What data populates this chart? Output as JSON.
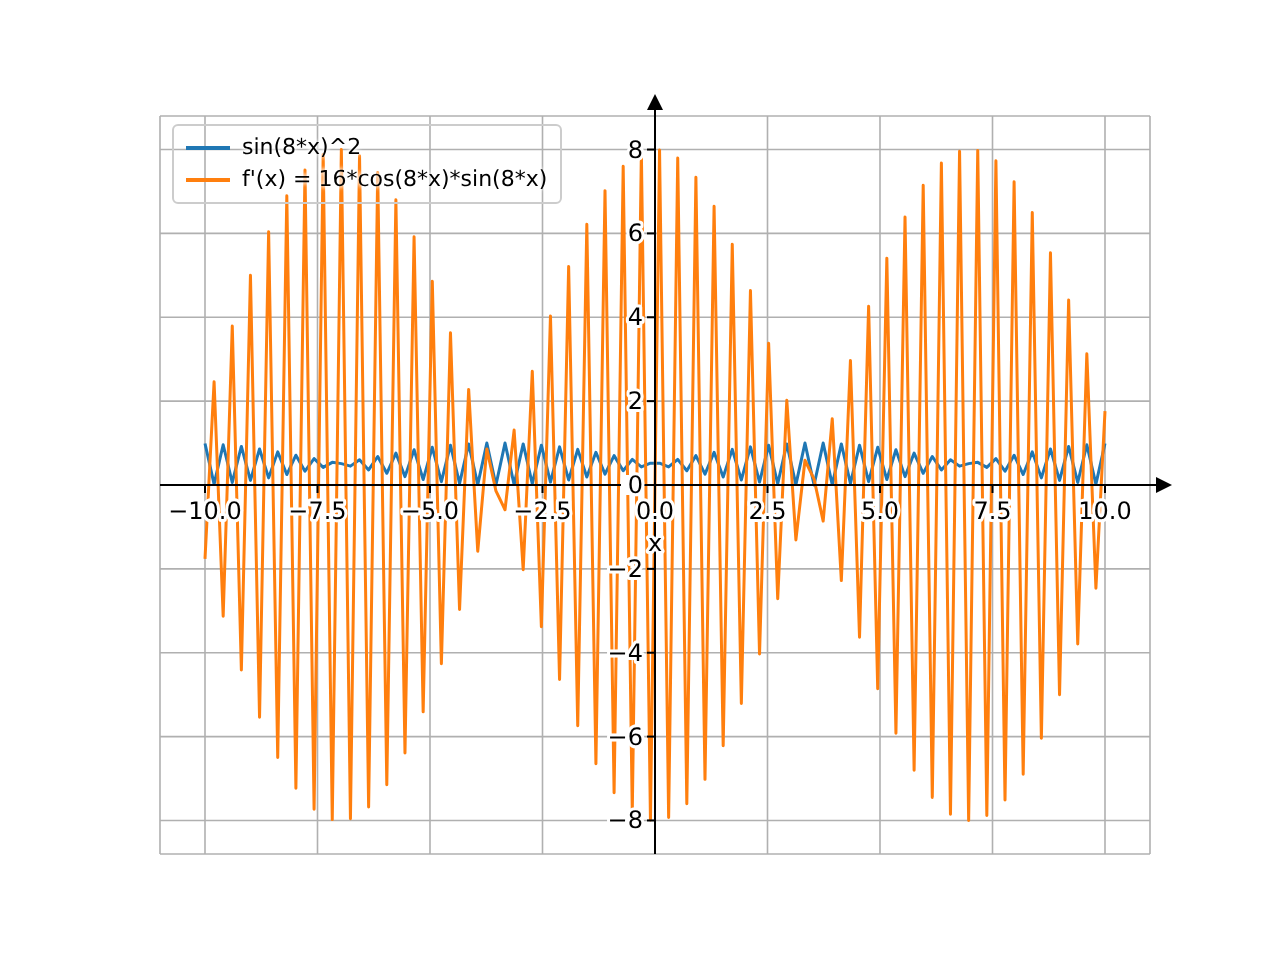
{
  "chart_data": {
    "type": "line",
    "xlabel": "x",
    "legend": "top left",
    "grid": true,
    "line_style": "solid",
    "xlim": [
      -11,
      11
    ],
    "ylim": [
      -8.8,
      8.8
    ],
    "xticks": [
      {
        "value": -10,
        "label": "−10.0"
      },
      {
        "value": -7.5,
        "label": "−7.5"
      },
      {
        "value": -5,
        "label": "−5.0"
      },
      {
        "value": -2.5,
        "label": "−2.5"
      },
      {
        "value": 0,
        "label": "0.0"
      },
      2.5,
      {
        "value": 5,
        "label": "5.0"
      },
      7.5,
      {
        "value": 10,
        "label": "10.0"
      }
    ],
    "yticks": [
      {
        "value": -8,
        "label": "−8"
      },
      {
        "value": -6,
        "label": "−6"
      },
      {
        "value": -4,
        "label": "−4"
      },
      {
        "value": -2,
        "label": "−2"
      },
      0,
      2,
      4,
      6,
      8
    ],
    "x": [
      -10,
      -9.798,
      -9.596,
      -9.394,
      -9.192,
      -8.99,
      -8.788,
      -8.586,
      -8.384,
      -8.182,
      -7.98,
      -7.778,
      -7.576,
      -7.374,
      -7.172,
      -6.97,
      -6.768,
      -6.566,
      -6.364,
      -6.162,
      -5.96,
      -5.758,
      -5.556,
      -5.354,
      -5.152,
      -4.949,
      -4.747,
      -4.545,
      -4.343,
      -4.141,
      -3.939,
      -3.737,
      -3.535,
      -3.333,
      -3.131,
      -2.929,
      -2.727,
      -2.525,
      -2.323,
      -2.121,
      -1.919,
      -1.717,
      -1.515,
      -1.313,
      -1.111,
      -0.909,
      -0.707,
      -0.505,
      -0.303,
      -0.101,
      0.101,
      0.303,
      0.505,
      0.707,
      0.909,
      1.111,
      1.313,
      1.515,
      1.717,
      1.919,
      2.121,
      2.323,
      2.525,
      2.727,
      2.929,
      3.131,
      3.333,
      3.535,
      3.737,
      3.939,
      4.141,
      4.343,
      4.545,
      4.747,
      4.949,
      5.152,
      5.354,
      5.556,
      5.758,
      5.96,
      6.162,
      6.364,
      6.566,
      6.768,
      6.97,
      7.172,
      7.374,
      7.576,
      7.778,
      7.98,
      8.182,
      8.384,
      8.586,
      8.788,
      8.99,
      9.192,
      9.394,
      9.596,
      9.798,
      10
    ],
    "series": [
      {
        "name": "sin(8*x)^2",
        "color": "#1f77b4",
        "values": [
          0.99,
          0.02,
          0.96,
          0.06,
          0.92,
          0.11,
          0.86,
          0.17,
          0.79,
          0.25,
          0.71,
          0.33,
          0.63,
          0.42,
          0.54,
          0.51,
          0.45,
          0.6,
          0.36,
          0.68,
          0.28,
          0.76,
          0.2,
          0.84,
          0.13,
          0.9,
          0.08,
          0.95,
          0.04,
          0.98,
          0.01,
          1.0,
          0.0,
          1.0,
          0.01,
          0.98,
          0.03,
          0.95,
          0.07,
          0.91,
          0.12,
          0.85,
          0.19,
          0.78,
          0.26,
          0.7,
          0.34,
          0.61,
          0.43,
          0.52,
          0.52,
          0.43,
          0.61,
          0.34,
          0.7,
          0.26,
          0.78,
          0.19,
          0.85,
          0.12,
          0.91,
          0.07,
          0.95,
          0.03,
          0.98,
          0.01,
          1.0,
          0.0,
          1.0,
          0.01,
          0.98,
          0.04,
          0.95,
          0.08,
          0.9,
          0.13,
          0.84,
          0.2,
          0.76,
          0.28,
          0.68,
          0.36,
          0.6,
          0.45,
          0.51,
          0.54,
          0.42,
          0.63,
          0.33,
          0.71,
          0.25,
          0.79,
          0.17,
          0.86,
          0.11,
          0.92,
          0.06,
          0.96,
          0.02,
          0.99
        ]
      },
      {
        "name": "f'(x) = 16*cos(8*x)*sin(8*x)",
        "color": "#ff7f0e",
        "values": [
          -1.76,
          2.46,
          -3.13,
          3.79,
          -4.41,
          5.0,
          -5.54,
          6.04,
          -6.5,
          6.9,
          -7.23,
          7.51,
          -7.73,
          7.88,
          -7.98,
          8.0,
          -7.96,
          7.85,
          -7.68,
          7.45,
          -7.15,
          6.8,
          -6.39,
          5.92,
          -5.41,
          4.86,
          -4.26,
          3.63,
          -2.97,
          2.28,
          -1.58,
          0.86,
          -0.14,
          -0.59,
          1.31,
          -2.02,
          2.71,
          -3.38,
          4.03,
          -4.64,
          5.21,
          -5.74,
          6.22,
          -6.65,
          7.02,
          -7.34,
          7.6,
          -7.8,
          7.93,
          -7.99,
          7.99,
          -7.93,
          7.8,
          -7.6,
          7.34,
          -7.02,
          6.65,
          -6.22,
          5.74,
          -5.21,
          4.64,
          -4.03,
          3.38,
          -2.71,
          2.02,
          -1.31,
          0.59,
          0.14,
          -0.86,
          1.58,
          -2.28,
          2.97,
          -3.63,
          4.26,
          -4.86,
          5.41,
          -5.92,
          6.39,
          -6.8,
          7.15,
          -7.45,
          7.68,
          -7.85,
          7.96,
          -8.0,
          7.98,
          -7.88,
          7.73,
          -7.51,
          7.23,
          -6.9,
          6.5,
          -6.04,
          5.54,
          -5.0,
          4.41,
          -3.79,
          3.13,
          -2.46,
          1.76
        ]
      }
    ]
  }
}
